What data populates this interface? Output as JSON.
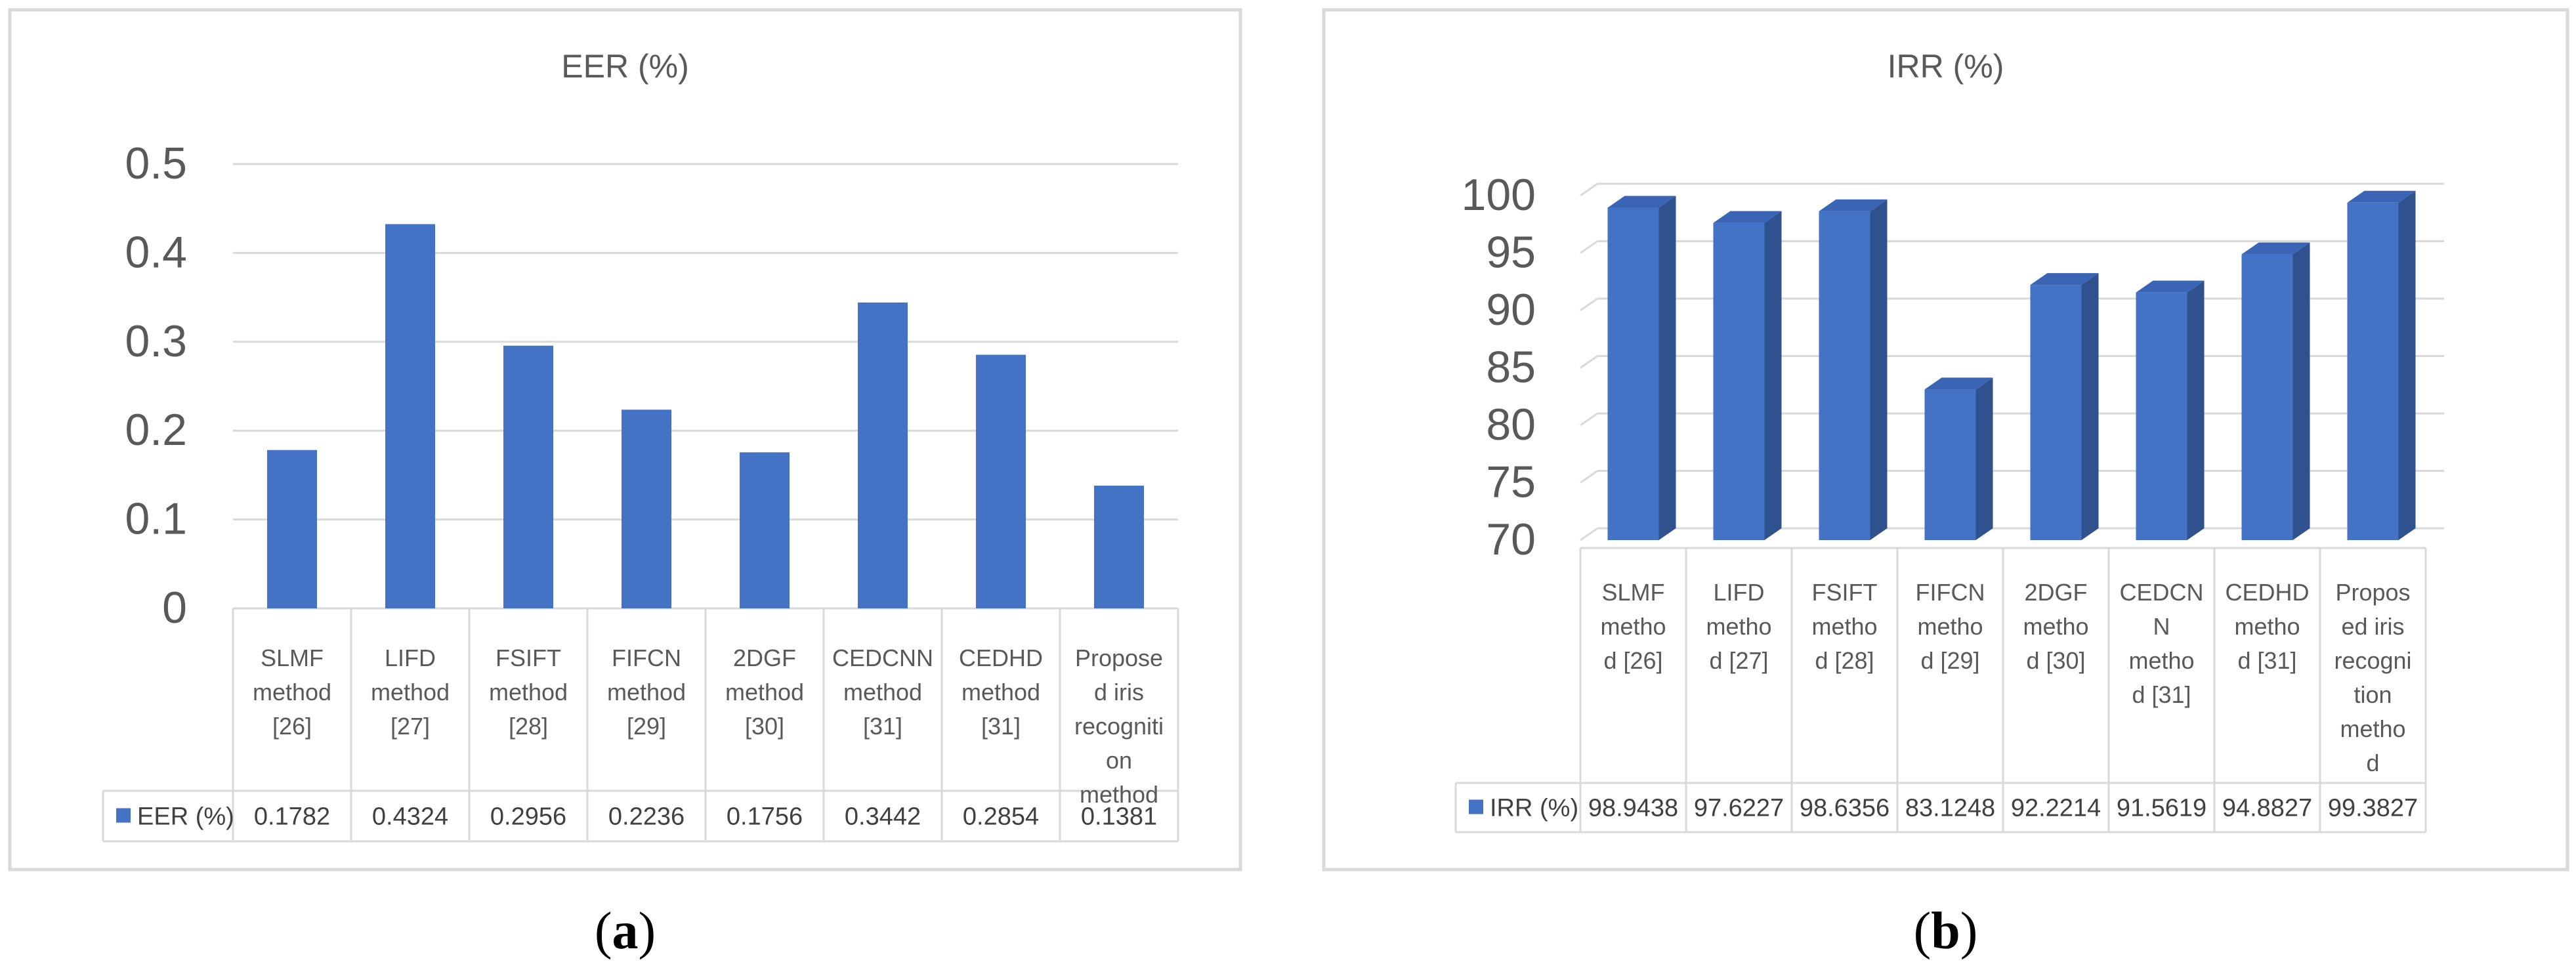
{
  "panels": [
    {
      "label": "a",
      "chart_data": {
        "type": "bar",
        "title": "EER (%)",
        "categories": [
          [
            "SLMF",
            "method",
            "[26]"
          ],
          [
            "LIFD",
            "method",
            "[27]"
          ],
          [
            "FSIFT",
            "method",
            "[28]"
          ],
          [
            "FIFCN",
            "method",
            "[29]"
          ],
          [
            "2DGF",
            "method",
            "[30]"
          ],
          [
            "CEDCNN",
            "method",
            "[31]"
          ],
          [
            "CEDHD",
            "method",
            "[31]"
          ],
          [
            "Propose",
            "d iris",
            "recogniti",
            "on",
            "method"
          ]
        ],
        "series": [
          {
            "name": "EER (%)",
            "values": [
              0.1782,
              0.4324,
              0.2956,
              0.2236,
              0.1756,
              0.3442,
              0.2854,
              0.1381
            ],
            "value_labels": [
              "0.1782",
              "0.4324",
              "0.2956",
              "0.2236",
              "0.1756",
              "0.3442",
              "0.2854",
              "0.1381"
            ]
          }
        ],
        "ylim": [
          0,
          0.5
        ],
        "yticks": [
          "0",
          "0.1",
          "0.2",
          "0.3",
          "0.4",
          "0.5"
        ],
        "grid": true,
        "three_d": false,
        "legend": "data-table",
        "colors": {
          "bar": "#4472C4",
          "bar_side": "#2F528F",
          "bar_top": "#3A64B4"
        }
      }
    },
    {
      "label": "b",
      "chart_data": {
        "type": "bar",
        "title": "IRR (%)",
        "categories": [
          [
            "SLMF",
            "metho",
            "d [26]"
          ],
          [
            "LIFD",
            "metho",
            "d [27]"
          ],
          [
            "FSIFT",
            "metho",
            "d [28]"
          ],
          [
            "FIFCN",
            "metho",
            "d [29]"
          ],
          [
            "2DGF",
            "metho",
            "d [30]"
          ],
          [
            "CEDCN",
            "N",
            "metho",
            "d [31]"
          ],
          [
            "CEDHD",
            "metho",
            "d [31]"
          ],
          [
            "Propos",
            "ed iris",
            "recogni",
            "tion",
            "metho",
            "d"
          ]
        ],
        "series": [
          {
            "name": "IRR (%)",
            "values": [
              98.9438,
              97.6227,
              98.6356,
              83.1248,
              92.2214,
              91.5619,
              94.8827,
              99.3827
            ],
            "value_labels": [
              "98.9438",
              "97.6227",
              "98.6356",
              "83.1248",
              "92.2214",
              "91.5619",
              "94.8827",
              "99.3827"
            ]
          }
        ],
        "ylim": [
          70,
          100
        ],
        "yticks": [
          "70",
          "75",
          "80",
          "85",
          "90",
          "95",
          "100"
        ],
        "grid": true,
        "three_d": true,
        "legend": "data-table",
        "colors": {
          "bar": "#4472C4",
          "bar_side": "#2F528F",
          "bar_top": "#3A64B4"
        }
      }
    }
  ]
}
